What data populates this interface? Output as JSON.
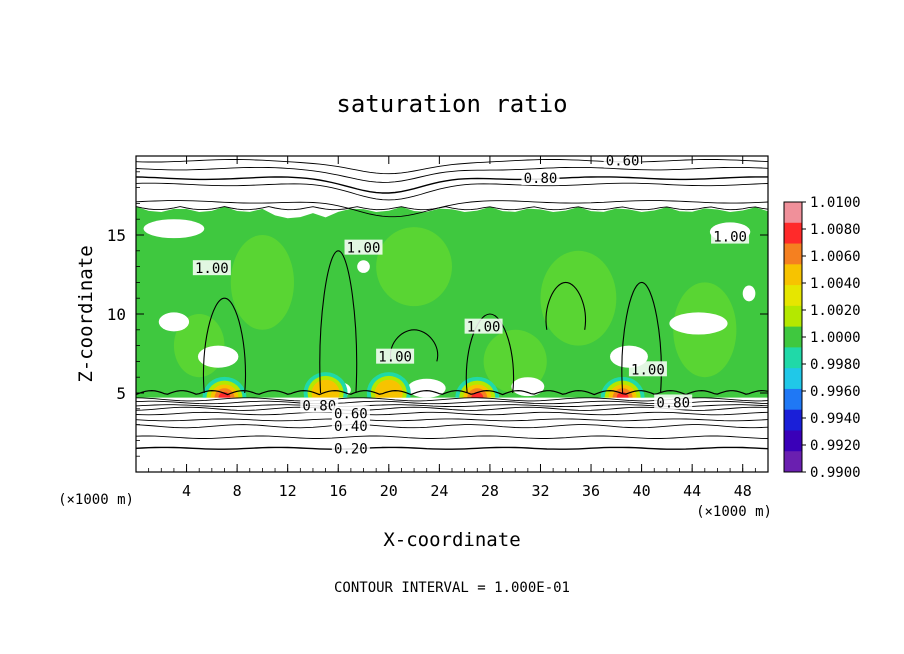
{
  "chart_data": {
    "type": "heatmap",
    "title": "saturation ratio",
    "xlabel": "X-coordinate",
    "ylabel": "Z-coordinate",
    "x_unit": "(×1000 m)",
    "y_unit": "(×1000 m)",
    "xlim": [
      0,
      50
    ],
    "ylim": [
      0,
      20
    ],
    "x_ticks": [
      4,
      8,
      12,
      16,
      20,
      24,
      28,
      32,
      36,
      40,
      44,
      48
    ],
    "y_ticks": [
      5,
      10,
      15
    ],
    "colorbar": {
      "min": 0.99,
      "max": 1.01,
      "ticks": [
        "1.0100",
        "1.0080",
        "1.0060",
        "1.0040",
        "1.0020",
        "1.0000",
        "0.9980",
        "0.9960",
        "0.9940",
        "0.9920",
        "0.9900"
      ],
      "colors": [
        "#f0909a",
        "#ff2a2a",
        "#f58020",
        "#f7c300",
        "#e6e600",
        "#b4e800",
        "#3fc83f",
        "#20d9a8",
        "#20c8e8",
        "#1f78f5",
        "#1a1fd8",
        "#3a00b8",
        "#6a1fb0"
      ]
    },
    "contour_interval": "1.000E-01",
    "footer": "CONTOUR INTERVAL = 1.000E-01",
    "contour_labels": [
      {
        "text": "0.60",
        "x": 38.5,
        "z": 19.7
      },
      {
        "text": "0.80",
        "x": 32.0,
        "z": 18.6
      },
      {
        "text": "1.00",
        "x": 18.0,
        "z": 14.2
      },
      {
        "text": "1.00",
        "x": 47.0,
        "z": 14.9
      },
      {
        "text": "1.00",
        "x": 6.0,
        "z": 12.9
      },
      {
        "text": "1.00",
        "x": 27.5,
        "z": 9.2
      },
      {
        "text": "1.00",
        "x": 20.5,
        "z": 7.3
      },
      {
        "text": "1.00",
        "x": 40.5,
        "z": 6.5
      },
      {
        "text": "0.80",
        "x": 14.5,
        "z": 4.2
      },
      {
        "text": "0.60",
        "x": 17.0,
        "z": 3.7
      },
      {
        "text": "0.40",
        "x": 17.0,
        "z": 2.9
      },
      {
        "text": "0.20",
        "x": 17.0,
        "z": 1.5
      },
      {
        "text": "0.80",
        "x": 42.5,
        "z": 4.4
      }
    ],
    "dry_contours_z": [
      1.5,
      2.2,
      2.9,
      3.3,
      3.7,
      4.0,
      4.2,
      4.4,
      4.6
    ],
    "upper_contours_z": [
      17.1,
      18.2,
      18.6,
      19.2,
      19.7
    ],
    "cloud_band_z": [
      4.7,
      16.8
    ],
    "hotspots": [
      {
        "x": 7.0,
        "z": 4.7,
        "peak": 1.006
      },
      {
        "x": 27.0,
        "z": 4.7,
        "peak": 1.006
      },
      {
        "x": 38.5,
        "z": 4.7,
        "peak": 1.008
      },
      {
        "x": 15.0,
        "z": 5.0,
        "peak": 1.003
      },
      {
        "x": 20.0,
        "z": 5.0,
        "peak": 1.003
      }
    ]
  }
}
